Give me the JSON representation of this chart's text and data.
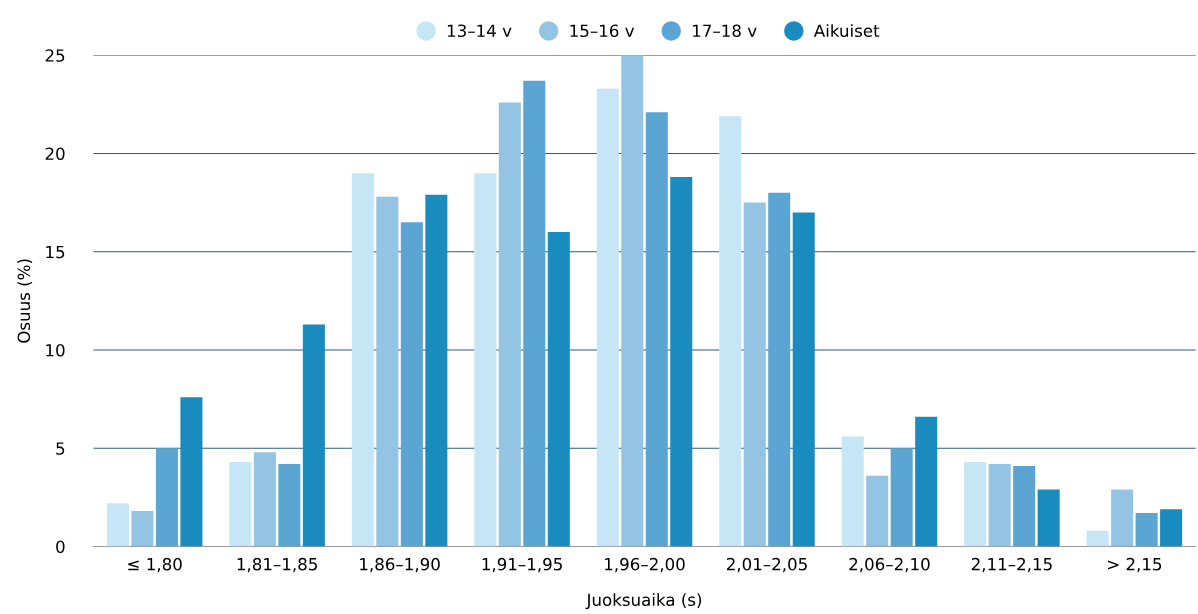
{
  "chart_data": {
    "type": "bar",
    "xlabel": "Juoksuaika (s)",
    "ylabel": "Osuus (%)",
    "categories": [
      "≤ 1,80",
      "1,81–1,85",
      "1,86–1,90",
      "1,91–1,95",
      "1,96–2,00",
      "2,01–2,05",
      "2,06–2,10",
      "2,11–2,15",
      "> 2,15"
    ],
    "series": [
      {
        "name": "13–14 v",
        "color": "#c6e6f7",
        "values": [
          2.2,
          4.3,
          19.0,
          19.0,
          23.3,
          21.9,
          5.6,
          4.3,
          0.8
        ]
      },
      {
        "name": "15–16 v",
        "color": "#93c4e3",
        "values": [
          1.8,
          4.8,
          17.8,
          22.6,
          25.0,
          17.5,
          3.6,
          4.2,
          2.9
        ]
      },
      {
        "name": "17–18 v",
        "color": "#5ba5d3",
        "values": [
          5.0,
          4.2,
          16.5,
          23.7,
          22.1,
          18.0,
          5.0,
          4.1,
          1.7
        ]
      },
      {
        "name": "Aikuiset",
        "color": "#1a8bbf",
        "values": [
          7.6,
          11.3,
          17.9,
          16.0,
          18.8,
          17.0,
          6.6,
          2.9,
          1.9
        ]
      }
    ],
    "ylim": [
      0,
      25
    ],
    "yticks": [
      0,
      5,
      10,
      15,
      20,
      25
    ],
    "grid": "y",
    "legend": "top"
  }
}
